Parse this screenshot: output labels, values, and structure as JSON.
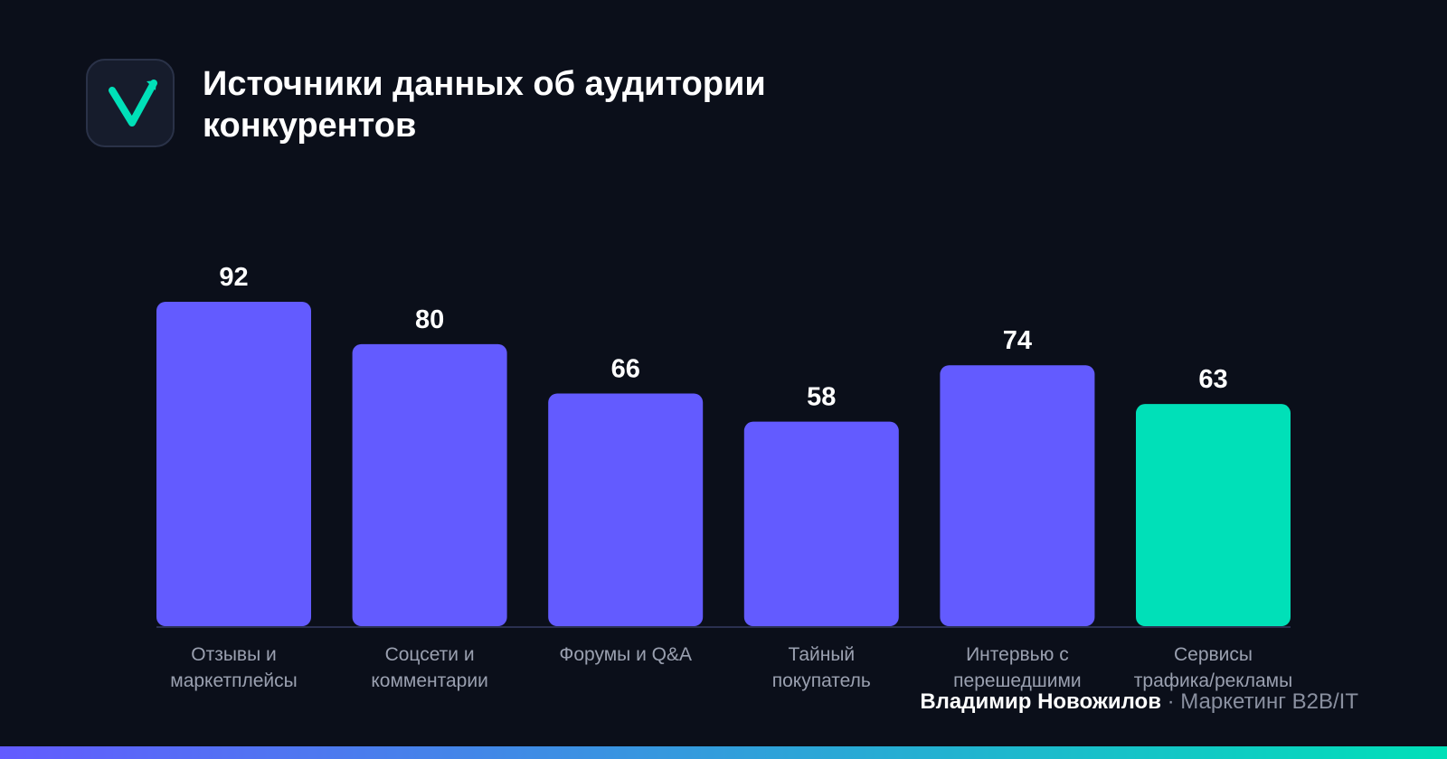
{
  "header": {
    "title": "Источники данных об аудитории\nконкурентов"
  },
  "chart_data": {
    "type": "bar",
    "categories": [
      "Отзывы и\nмаркетплейсы",
      "Соцсети и\nкомментарии",
      "Форумы и Q&A",
      "Тайный\nпокупатель",
      "Интервью с\nперешедшими",
      "Сервисы\nтрафика/рекламы"
    ],
    "values": [
      92,
      80,
      66,
      58,
      74,
      63
    ],
    "colors": [
      "#635bff",
      "#635bff",
      "#635bff",
      "#635bff",
      "#635bff",
      "#00e0b8"
    ]
  },
  "footer": {
    "author": "Владимир Новожилов",
    "tagline": "· Маркетинг B2B/IT"
  }
}
